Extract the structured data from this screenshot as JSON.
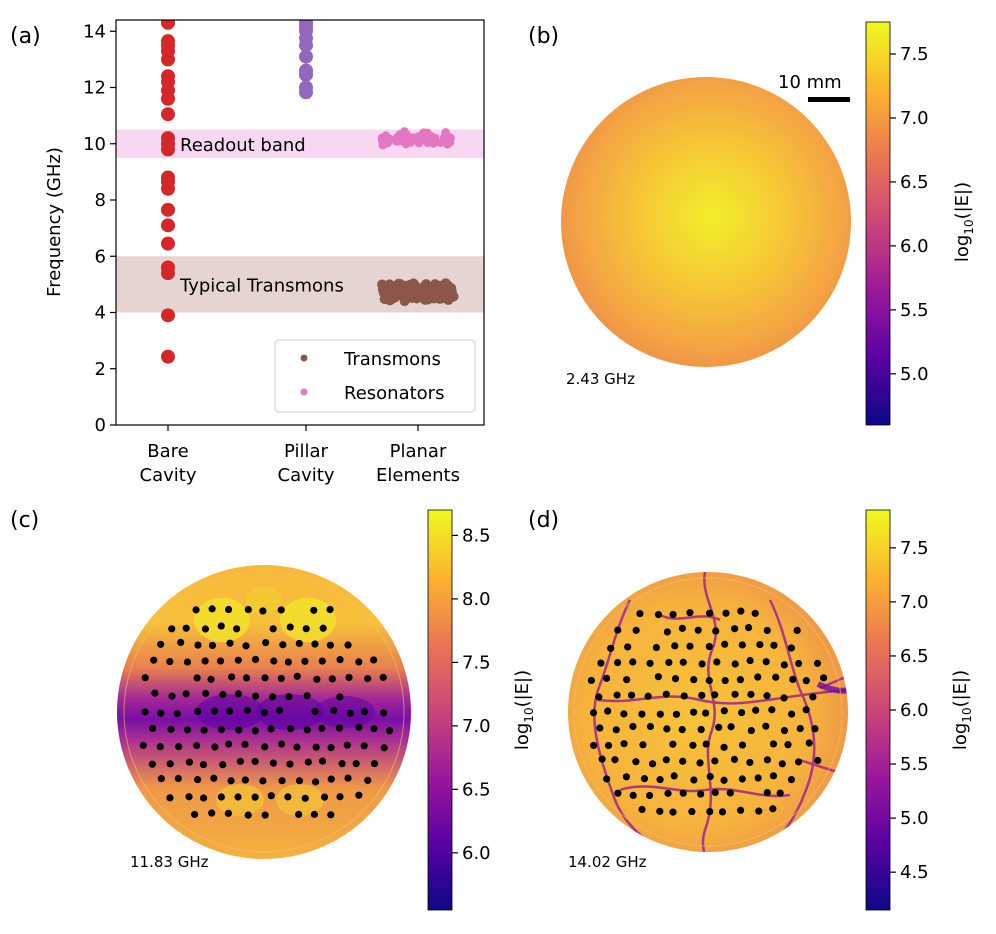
{
  "chart_data": [
    {
      "panel": "(a)",
      "type": "scatter",
      "ylabel": "Frequency (GHz)",
      "ylim": [
        0,
        14.4
      ],
      "yticks": [
        "0",
        "2",
        "4",
        "6",
        "8",
        "10",
        "12",
        "14"
      ],
      "categories": [
        {
          "line1": "Bare",
          "line2": "Cavity"
        },
        {
          "line1": "Pillar",
          "line2": "Cavity"
        },
        {
          "line1": "Planar",
          "line2": "Elements"
        }
      ],
      "bands": [
        {
          "label": "Readout band",
          "ymin": 9.5,
          "ymax": 10.5,
          "color": "#f0b7e6"
        },
        {
          "label": "Typical Transmons",
          "ymin": 4.0,
          "ymax": 6.0,
          "color": "#cfb0ab"
        }
      ],
      "series": [
        {
          "name": "Bare Cavity modes",
          "category": 0,
          "color": "#d62728",
          "values": [
            2.43,
            3.9,
            5.4,
            5.6,
            6.45,
            7.1,
            7.65,
            8.4,
            8.65,
            8.8,
            9.8,
            10.0,
            10.2,
            11.05,
            11.6,
            11.9,
            12.2,
            12.4,
            13.0,
            13.3,
            13.5,
            13.65,
            14.3
          ]
        },
        {
          "name": "Pillar Cavity modes",
          "category": 1,
          "color": "#9467bd",
          "values": [
            11.83,
            12.0,
            12.45,
            12.6,
            13.1,
            13.5,
            13.75,
            14.02,
            14.15,
            14.3
          ]
        },
        {
          "name": "Resonators",
          "category": 2,
          "color": "#e377c2",
          "count": 60,
          "center": 10.15,
          "spread": 0.3
        },
        {
          "name": "Transmons",
          "category": 2,
          "color": "#8c564b",
          "count": 110,
          "center": 4.75,
          "spread": 0.35
        }
      ],
      "legend": {
        "position": "lower-right",
        "entries": [
          {
            "label": "Transmons",
            "color": "#8c564b"
          },
          {
            "label": "Resonators",
            "color": "#e377c2"
          }
        ]
      }
    },
    {
      "panel": "(b)",
      "type": "heatmap",
      "annotation": "2.43 GHz",
      "scalebar": "10 mm",
      "colorbar": {
        "label_main": "log",
        "label_sub": "10",
        "label_tail": "(|E|)",
        "range": [
          4.6,
          7.75
        ],
        "ticks": [
          "5.0",
          "5.5",
          "6.0",
          "6.5",
          "7.0",
          "7.5"
        ]
      }
    },
    {
      "panel": "(c)",
      "type": "heatmap",
      "annotation": "11.83 GHz",
      "colorbar": {
        "label_main": "log",
        "label_sub": "10",
        "label_tail": "(|E|)",
        "range": [
          5.55,
          8.7
        ],
        "ticks": [
          "6.0",
          "6.5",
          "7.0",
          "7.5",
          "8.0",
          "8.5"
        ]
      }
    },
    {
      "panel": "(d)",
      "type": "heatmap",
      "annotation": "14.02 GHz",
      "colorbar": {
        "label_main": "log",
        "label_sub": "10",
        "label_tail": "(|E|)",
        "range": [
          4.15,
          7.85
        ],
        "ticks": [
          "4.5",
          "5.0",
          "5.5",
          "6.0",
          "6.5",
          "7.0",
          "7.5"
        ]
      }
    }
  ],
  "colors": {
    "plasma": [
      "#0d0887",
      "#5b02a3",
      "#9a179b",
      "#cb4678",
      "#eb7852",
      "#fbb32f",
      "#f0f921"
    ]
  }
}
